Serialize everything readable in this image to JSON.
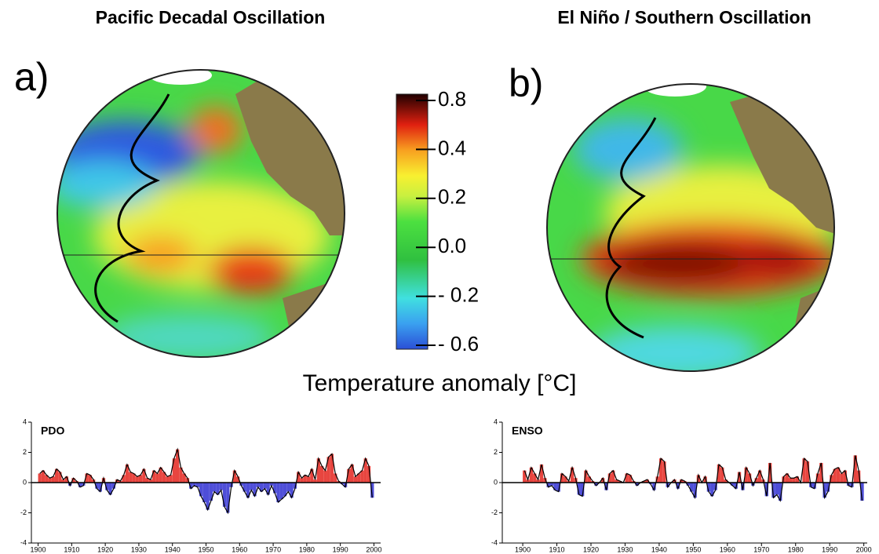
{
  "panels": [
    {
      "title": "Pacific Decadal Oscillation",
      "label": "a)"
    },
    {
      "title": "El Niño / Southern Oscillation",
      "label": "b)"
    }
  ],
  "colorbar": {
    "title": "Temperature anomaly [°C]",
    "ticks": [
      0.8,
      0.4,
      0.2,
      {
        "value": 0,
        "label": "0.0"
      },
      {
        "value": -0.2,
        "label": "- 0.2"
      },
      {
        "value": -0.6,
        "label": "- 0.6"
      }
    ]
  },
  "chart_data": [
    {
      "type": "bar",
      "title": "PDO",
      "x": [
        1900,
        1901,
        1902,
        1903,
        1904,
        1905,
        1906,
        1907,
        1908,
        1909,
        1910,
        1911,
        1912,
        1913,
        1914,
        1915,
        1916,
        1917,
        1918,
        1919,
        1920,
        1921,
        1922,
        1923,
        1924,
        1925,
        1926,
        1927,
        1928,
        1929,
        1930,
        1931,
        1932,
        1933,
        1934,
        1935,
        1936,
        1937,
        1938,
        1939,
        1940,
        1941,
        1942,
        1943,
        1944,
        1945,
        1946,
        1947,
        1948,
        1949,
        1950,
        1951,
        1952,
        1953,
        1954,
        1955,
        1956,
        1957,
        1958,
        1959,
        1960,
        1961,
        1962,
        1963,
        1964,
        1965,
        1966,
        1967,
        1968,
        1969,
        1970,
        1971,
        1972,
        1973,
        1974,
        1975,
        1976,
        1977,
        1978,
        1979,
        1980,
        1981,
        1982,
        1983,
        1984,
        1985,
        1986,
        1987,
        1988,
        1989,
        1990,
        1991,
        1992,
        1993,
        1994,
        1995,
        1996,
        1997,
        1998,
        1999
      ],
      "values": [
        0.6,
        0.8,
        0.5,
        0.3,
        0.4,
        0.9,
        0.7,
        0.2,
        0.4,
        -0.2,
        0.3,
        0.1,
        -0.3,
        -0.2,
        0.6,
        0.5,
        0.2,
        -0.4,
        -0.6,
        0.3,
        -0.5,
        -0.8,
        -0.4,
        0.2,
        0.1,
        0.5,
        1.2,
        0.7,
        0.6,
        0.4,
        0.5,
        0.9,
        0.3,
        0.2,
        0.8,
        0.6,
        1.0,
        0.7,
        0.4,
        0.5,
        1.6,
        2.2,
        1.0,
        0.6,
        0.3,
        -0.4,
        -0.2,
        -0.3,
        -0.9,
        -1.3,
        -1.8,
        -1.2,
        -0.6,
        -0.8,
        -0.5,
        -1.6,
        -2.0,
        -0.3,
        0.8,
        0.4,
        -0.2,
        -0.6,
        -1.0,
        -0.5,
        -0.9,
        -0.3,
        -0.6,
        -0.4,
        -0.8,
        -0.2,
        -0.7,
        -1.3,
        -1.1,
        -0.9,
        -0.6,
        -1.0,
        -0.4,
        0.7,
        0.3,
        0.5,
        0.4,
        0.9,
        0.2,
        1.6,
        1.1,
        0.8,
        1.7,
        1.9,
        0.6,
        0.1,
        -0.1,
        -0.3,
        0.9,
        1.2,
        0.4,
        0.6,
        0.8,
        1.6,
        1.1,
        -1.0
      ],
      "xlim": [
        1898,
        2002
      ],
      "xticks": [
        1900,
        1910,
        1920,
        1930,
        1940,
        1950,
        1960,
        1970,
        1980,
        1990,
        2000
      ],
      "ylim": [
        -4,
        4
      ],
      "yticks": [
        4,
        2,
        0,
        -2,
        -4
      ],
      "colors": {
        "positive": "#e8453f",
        "negative": "#4e4ed8",
        "line": "#000000"
      }
    },
    {
      "type": "bar",
      "title": "ENSO",
      "x": [
        1900,
        1901,
        1902,
        1903,
        1904,
        1905,
        1906,
        1907,
        1908,
        1909,
        1910,
        1911,
        1912,
        1913,
        1914,
        1915,
        1916,
        1917,
        1918,
        1919,
        1920,
        1921,
        1922,
        1923,
        1924,
        1925,
        1926,
        1927,
        1928,
        1929,
        1930,
        1931,
        1932,
        1933,
        1934,
        1935,
        1936,
        1937,
        1938,
        1939,
        1940,
        1941,
        1942,
        1943,
        1944,
        1945,
        1946,
        1947,
        1948,
        1949,
        1950,
        1951,
        1952,
        1953,
        1954,
        1955,
        1956,
        1957,
        1958,
        1959,
        1960,
        1961,
        1962,
        1963,
        1964,
        1965,
        1966,
        1967,
        1968,
        1969,
        1970,
        1971,
        1972,
        1973,
        1974,
        1975,
        1976,
        1977,
        1978,
        1979,
        1980,
        1981,
        1982,
        1983,
        1984,
        1985,
        1986,
        1987,
        1988,
        1989,
        1990,
        1991,
        1992,
        1993,
        1994,
        1995,
        1996,
        1997,
        1998,
        1999
      ],
      "values": [
        0.8,
        0.2,
        1.0,
        0.6,
        0.2,
        1.2,
        0.3,
        -0.3,
        -0.2,
        -0.5,
        -0.6,
        0.6,
        0.4,
        0.1,
        1.0,
        0.3,
        -0.8,
        -0.9,
        0.8,
        0.4,
        0.1,
        -0.2,
        0.0,
        0.3,
        -0.5,
        0.6,
        0.8,
        0.2,
        0.1,
        0.0,
        0.6,
        0.5,
        0.1,
        -0.2,
        0.0,
        0.1,
        0.2,
        -0.1,
        -0.5,
        0.4,
        1.6,
        1.4,
        -0.3,
        0.0,
        0.2,
        -0.4,
        0.2,
        0.1,
        -0.2,
        -0.6,
        -1.0,
        0.5,
        0.0,
        0.4,
        -0.6,
        -0.9,
        -0.5,
        1.2,
        1.0,
        0.2,
        0.0,
        -0.2,
        -0.4,
        0.7,
        -0.5,
        1.0,
        0.6,
        -0.2,
        0.3,
        0.8,
        0.2,
        -0.9,
        1.3,
        -1.0,
        -0.8,
        -1.2,
        0.4,
        0.6,
        0.3,
        0.3,
        0.4,
        0.0,
        1.6,
        1.4,
        -0.3,
        -0.4,
        0.6,
        1.3,
        -1.0,
        -0.6,
        0.5,
        0.9,
        1.0,
        0.6,
        0.8,
        -0.2,
        -0.3,
        1.8,
        0.8,
        -1.2
      ],
      "xlim": [
        1894,
        2001
      ],
      "xticks": [
        1900,
        1910,
        1920,
        1930,
        1940,
        1950,
        1960,
        1970,
        1980,
        1990,
        2000
      ],
      "ylim": [
        -4,
        4
      ],
      "yticks": [
        4,
        2,
        0,
        -2,
        -4
      ],
      "colors": {
        "positive": "#e8453f",
        "negative": "#4e4ed8",
        "line": "#000000"
      }
    }
  ]
}
